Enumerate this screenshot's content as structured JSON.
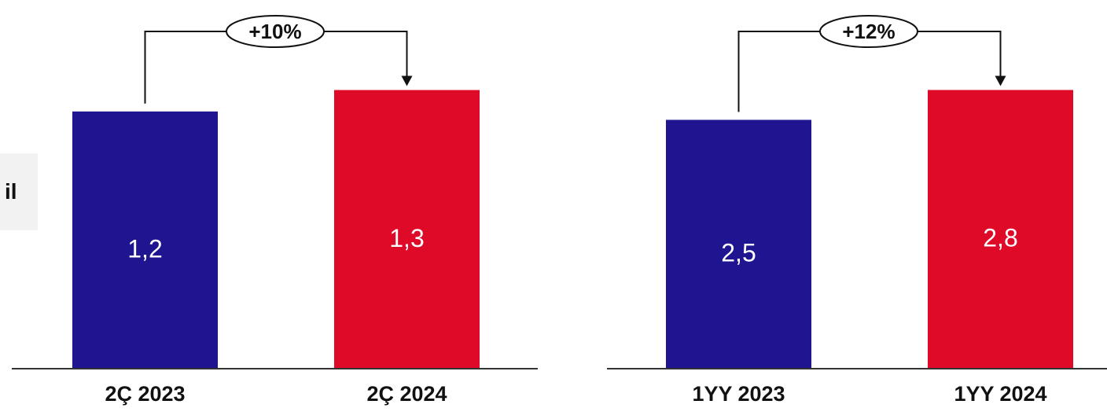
{
  "side_tab": {
    "text": "il"
  },
  "chart_data": [
    {
      "type": "bar",
      "categories": [
        "2Ç 2023",
        "2Ç 2024"
      ],
      "values": [
        1.2,
        1.3
      ],
      "value_labels": [
        "1,2",
        "1,3"
      ],
      "colors": [
        "#1f1590",
        "#de0a27"
      ],
      "growth_label": "+10%",
      "title": "",
      "xlabel": "",
      "ylabel": "",
      "ylim": [
        0,
        1.5
      ],
      "grid": false
    },
    {
      "type": "bar",
      "categories": [
        "1YY 2023",
        "1YY 2024"
      ],
      "values": [
        2.5,
        2.8
      ],
      "value_labels": [
        "2,5",
        "2,8"
      ],
      "colors": [
        "#1f1590",
        "#de0a27"
      ],
      "growth_label": "+12%",
      "title": "",
      "xlabel": "",
      "ylabel": "",
      "ylim": [
        0,
        3.23
      ],
      "grid": false
    }
  ]
}
